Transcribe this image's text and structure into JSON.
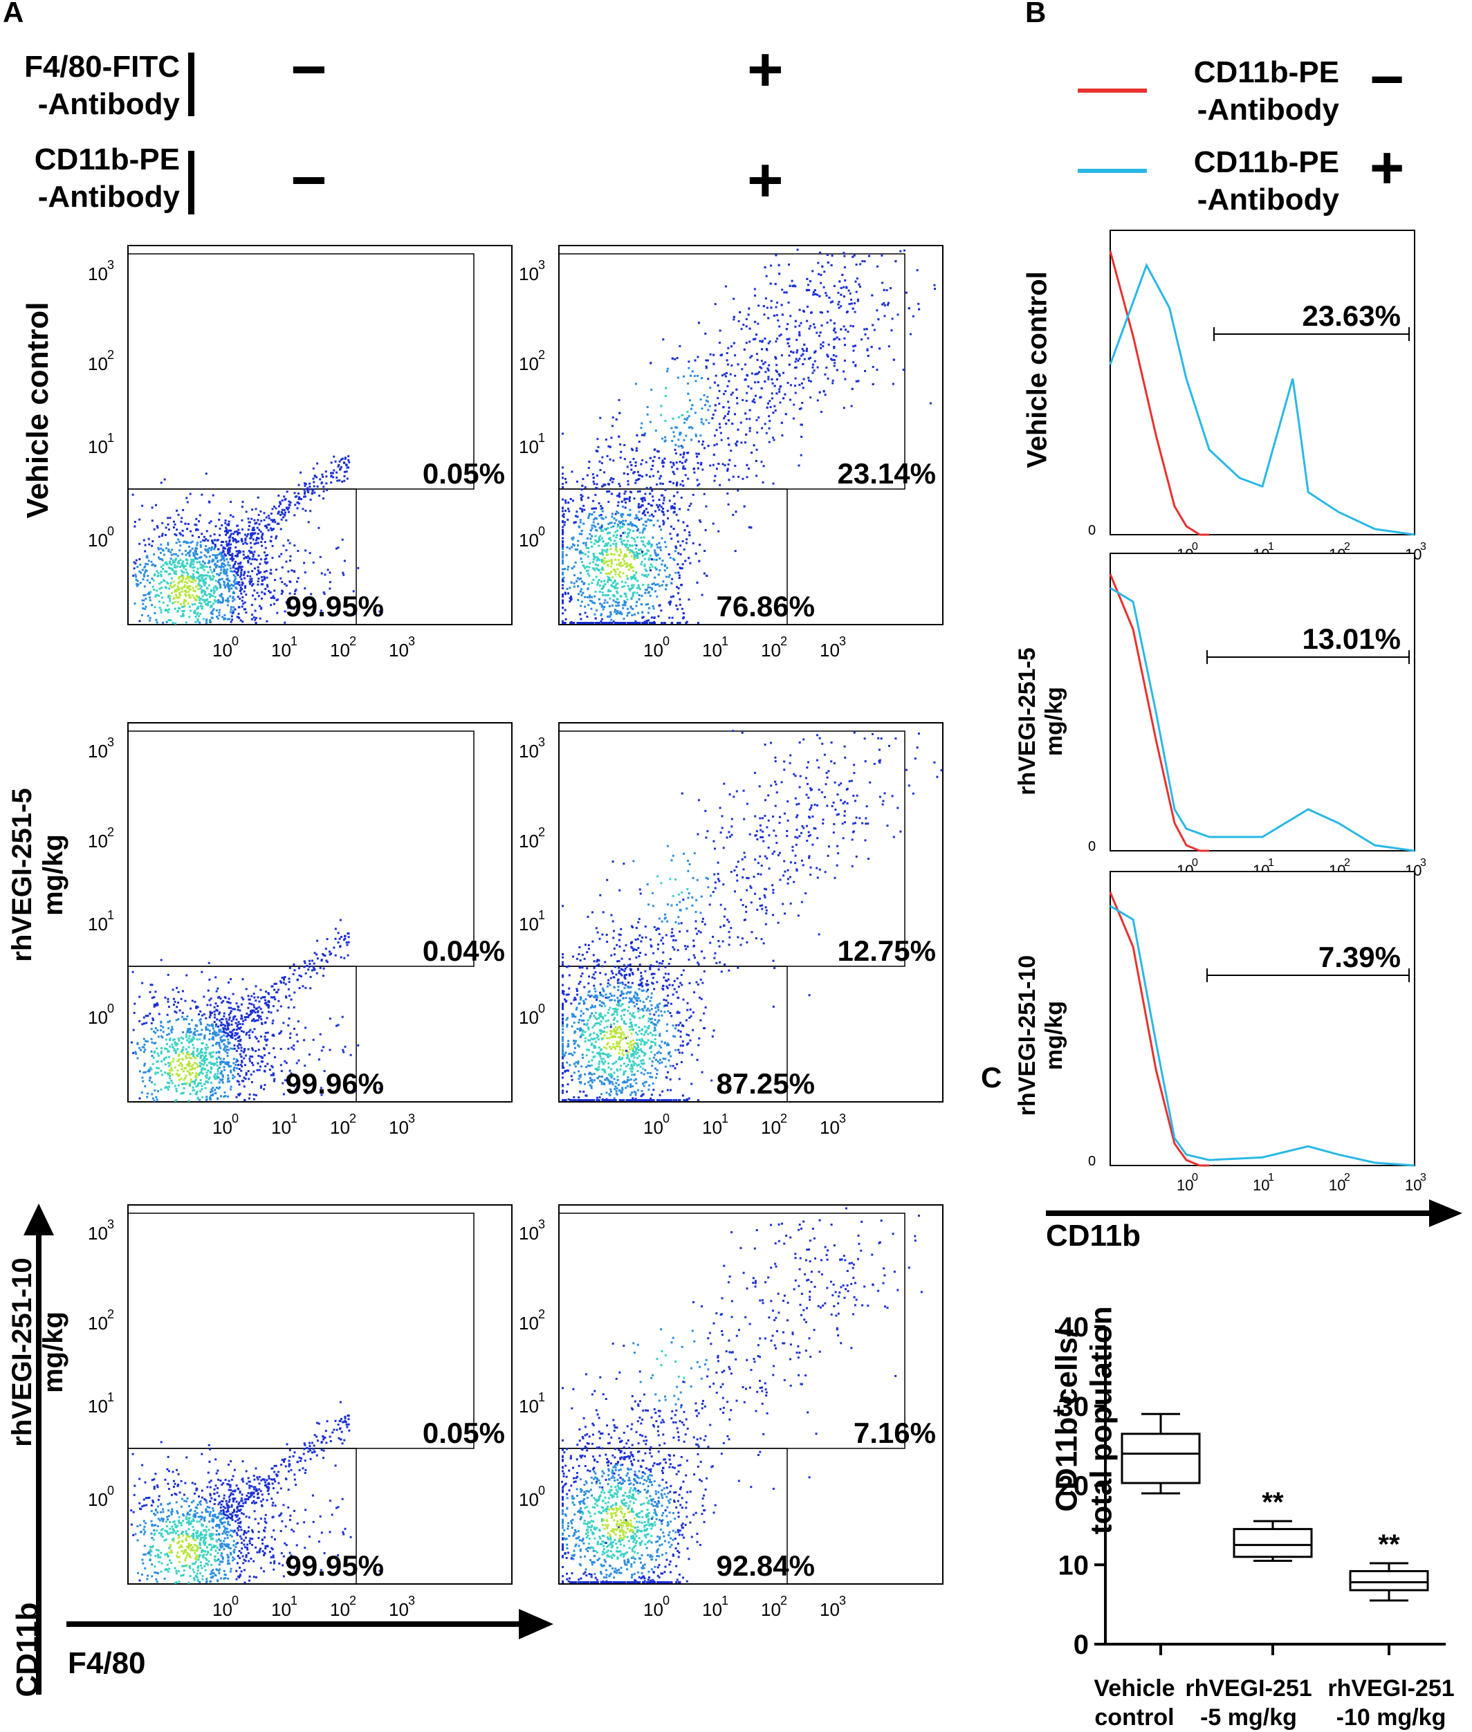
{
  "panel_a": {
    "letter": "A",
    "conditions": [
      {
        "label_line1": "F4/80-FITC",
        "label_line2": "-Antibody",
        "minus": "−",
        "plus": "+"
      },
      {
        "label_line1": "CD11b-PE",
        "label_line2": "-Antibody",
        "minus": "−",
        "plus": "+"
      }
    ],
    "row_labels": [
      "Vehicle control",
      "rhVEGI-251-5 mg/kg",
      "rhVEGI-251-10 mg/kg"
    ],
    "y_axis_label": "CD11b",
    "x_axis_label": "F4/80",
    "tick_labels": [
      "10",
      "0",
      "1",
      "2",
      "3"
    ]
  },
  "panel_b": {
    "letter": "B",
    "legend": [
      {
        "line1": "CD11b-PE",
        "line2": "-Antibody",
        "sign": "−",
        "color": "#e8312f"
      },
      {
        "line1": "CD11b-PE",
        "line2": "-Antibody",
        "sign": "+",
        "color": "#29b8e6"
      }
    ],
    "row_labels": [
      "Vehicle control",
      "rhVEGI-251-5 mg/kg",
      "rhVEGI-251-10 mg/kg"
    ],
    "x_axis_label": "CD11b",
    "zero_label": "0"
  },
  "panel_c": {
    "letter": "C",
    "ylabel_line1": "CD11b",
    "ylabel_sup": "+",
    "ylabel_line1_rest": "cells/",
    "ylabel_line2": "total population",
    "yticks": [
      "0",
      "10",
      "20",
      "30",
      "40"
    ],
    "categories_line1": [
      "Vehicle",
      "rhVEGI-251",
      "rhVEGI-251"
    ],
    "categories_line2": [
      "control",
      "-5 mg/kg",
      "-10 mg/kg"
    ],
    "significance": [
      "",
      "**",
      "**"
    ]
  },
  "chart_data": [
    {
      "type": "scatter",
      "title": "Vehicle control, antibody −",
      "xlabel": "F4/80",
      "ylabel": "CD11b",
      "x_scale": "log",
      "y_scale": "log",
      "quadrant_percent": {
        "upper": "0.05%",
        "lower": "99.95%"
      }
    },
    {
      "type": "scatter",
      "title": "Vehicle control, antibody +",
      "xlabel": "F4/80",
      "ylabel": "CD11b",
      "x_scale": "log",
      "y_scale": "log",
      "quadrant_percent": {
        "upper": "23.14%",
        "lower": "76.86%"
      }
    },
    {
      "type": "scatter",
      "title": "rhVEGI-251-5 mg/kg, antibody −",
      "xlabel": "F4/80",
      "ylabel": "CD11b",
      "x_scale": "log",
      "y_scale": "log",
      "quadrant_percent": {
        "upper": "0.04%",
        "lower": "99.96%"
      }
    },
    {
      "type": "scatter",
      "title": "rhVEGI-251-5 mg/kg, antibody +",
      "xlabel": "F4/80",
      "ylabel": "CD11b",
      "x_scale": "log",
      "y_scale": "log",
      "quadrant_percent": {
        "upper": "12.75%",
        "lower": "87.25%"
      }
    },
    {
      "type": "scatter",
      "title": "rhVEGI-251-10 mg/kg, antibody −",
      "xlabel": "F4/80",
      "ylabel": "CD11b",
      "x_scale": "log",
      "y_scale": "log",
      "quadrant_percent": {
        "upper": "0.05%",
        "lower": "99.95%"
      }
    },
    {
      "type": "scatter",
      "title": "rhVEGI-251-10 mg/kg, antibody +",
      "xlabel": "F4/80",
      "ylabel": "CD11b",
      "x_scale": "log",
      "y_scale": "log",
      "quadrant_percent": {
        "upper": "7.16%",
        "lower": "92.84%"
      }
    },
    {
      "type": "line",
      "title": "Vehicle control",
      "xlabel": "CD11b",
      "x_scale": "log",
      "gate_percent": "23.63%",
      "series": [
        {
          "color": "#e8312f",
          "x": [
            0.1,
            0.2,
            0.4,
            0.7,
            1.0,
            1.5,
            2.0
          ],
          "y": [
            1.0,
            0.7,
            0.35,
            0.1,
            0.03,
            0.0,
            0.0
          ]
        },
        {
          "color": "#29b8e6",
          "x": [
            0.1,
            0.3,
            0.6,
            1.0,
            2.0,
            5.0,
            10,
            25,
            30,
            40,
            100,
            300,
            1000
          ],
          "y": [
            0.6,
            0.95,
            0.8,
            0.55,
            0.3,
            0.2,
            0.17,
            0.55,
            0.4,
            0.15,
            0.08,
            0.02,
            0.0
          ]
        }
      ]
    },
    {
      "type": "line",
      "title": "rhVEGI-251-5 mg/kg",
      "xlabel": "CD11b",
      "x_scale": "log",
      "gate_percent": "13.01%",
      "series": [
        {
          "color": "#e8312f",
          "x": [
            0.1,
            0.2,
            0.4,
            0.7,
            1.0,
            1.5,
            2.0
          ],
          "y": [
            1.0,
            0.8,
            0.4,
            0.1,
            0.02,
            0.0,
            0.0
          ]
        },
        {
          "color": "#29b8e6",
          "x": [
            0.1,
            0.2,
            0.4,
            0.7,
            1.0,
            2.0,
            10,
            40,
            100,
            300,
            1000
          ],
          "y": [
            0.95,
            0.9,
            0.5,
            0.15,
            0.08,
            0.05,
            0.05,
            0.15,
            0.1,
            0.02,
            0.0
          ]
        }
      ]
    },
    {
      "type": "line",
      "title": "rhVEGI-251-10 mg/kg",
      "xlabel": "CD11b",
      "x_scale": "log",
      "gate_percent": "7.39%",
      "series": [
        {
          "color": "#e8312f",
          "x": [
            0.1,
            0.2,
            0.4,
            0.7,
            1.0,
            1.5,
            2.0
          ],
          "y": [
            1.0,
            0.8,
            0.35,
            0.08,
            0.02,
            0.0,
            0.0
          ]
        },
        {
          "color": "#29b8e6",
          "x": [
            0.1,
            0.2,
            0.4,
            0.7,
            1.0,
            2.0,
            10,
            40,
            100,
            300,
            1000
          ],
          "y": [
            0.95,
            0.9,
            0.45,
            0.1,
            0.04,
            0.02,
            0.03,
            0.07,
            0.04,
            0.01,
            0.0
          ]
        }
      ]
    },
    {
      "type": "box",
      "title": "",
      "ylabel": "CD11b+cells/ total population",
      "ylim": [
        0,
        40
      ],
      "categories": [
        "Vehicle control",
        "rhVEGI-251 -5 mg/kg",
        "rhVEGI-251 -10 mg/kg"
      ],
      "boxes": [
        {
          "min": 19,
          "q1": 20.3,
          "median": 24,
          "q3": 26.5,
          "max": 29
        },
        {
          "min": 10.5,
          "q1": 11,
          "median": 12.5,
          "q3": 14.5,
          "max": 15.5
        },
        {
          "min": 5.5,
          "q1": 6.8,
          "median": 7.8,
          "q3": 9.2,
          "max": 10.2
        }
      ]
    }
  ]
}
